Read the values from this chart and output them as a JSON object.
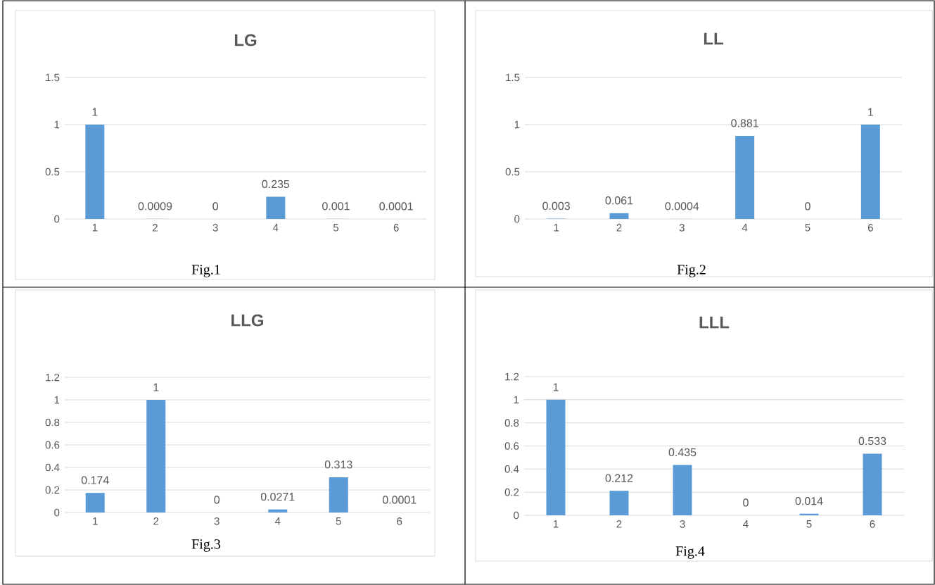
{
  "chart_data": [
    {
      "type": "bar",
      "title": "LG",
      "categories": [
        "1",
        "2",
        "3",
        "4",
        "5",
        "6"
      ],
      "values": [
        1,
        0.0009,
        0,
        0.235,
        0.001,
        0.0001
      ],
      "value_labels": [
        "1",
        "0.0009",
        "0",
        "0.235",
        "0.001",
        "0.0001"
      ],
      "color": "#5b9bd5",
      "ylim": [
        0,
        1.5
      ],
      "yticks": [
        0,
        0.5,
        1,
        1.5
      ],
      "grid": "y",
      "annotations": [
        "Fig.1"
      ]
    },
    {
      "type": "bar",
      "title": "LL",
      "categories": [
        "1",
        "2",
        "3",
        "4",
        "5",
        "6"
      ],
      "values": [
        0.003,
        0.061,
        0.0004,
        0.881,
        0,
        1
      ],
      "value_labels": [
        "0.003",
        "0.061",
        "0.0004",
        "0.881",
        "0",
        "1"
      ],
      "color": "#5b9bd5",
      "ylim": [
        0,
        1.5
      ],
      "yticks": [
        0,
        0.5,
        1,
        1.5
      ],
      "grid": "y",
      "annotations": [
        "Fig.2"
      ]
    },
    {
      "type": "bar",
      "title": "LLG",
      "categories": [
        "1",
        "2",
        "3",
        "4",
        "5",
        "6"
      ],
      "values": [
        0.174,
        1,
        0,
        0.0271,
        0.313,
        0.0001
      ],
      "value_labels": [
        "0.174",
        "1",
        "0",
        "0.0271",
        "0.313",
        "0.0001"
      ],
      "color": "#5b9bd5",
      "ylim": [
        0,
        1.2
      ],
      "yticks": [
        0,
        0.2,
        0.4,
        0.6,
        0.8,
        1,
        1.2
      ],
      "grid": "y",
      "annotations": [
        "Fig.3"
      ]
    },
    {
      "type": "bar",
      "title": "LLL",
      "categories": [
        "1",
        "2",
        "3",
        "4",
        "5",
        "6"
      ],
      "values": [
        1,
        0.212,
        0.435,
        0,
        0.014,
        0.533
      ],
      "value_labels": [
        "1",
        "0.212",
        "0.435",
        "0",
        "0.014",
        "0.533"
      ],
      "color": "#5b9bd5",
      "ylim": [
        0,
        1.2
      ],
      "yticks": [
        0,
        0.2,
        0.4,
        0.6,
        0.8,
        1,
        1.2
      ],
      "grid": "y",
      "annotations": [
        "Fig.4"
      ]
    }
  ]
}
